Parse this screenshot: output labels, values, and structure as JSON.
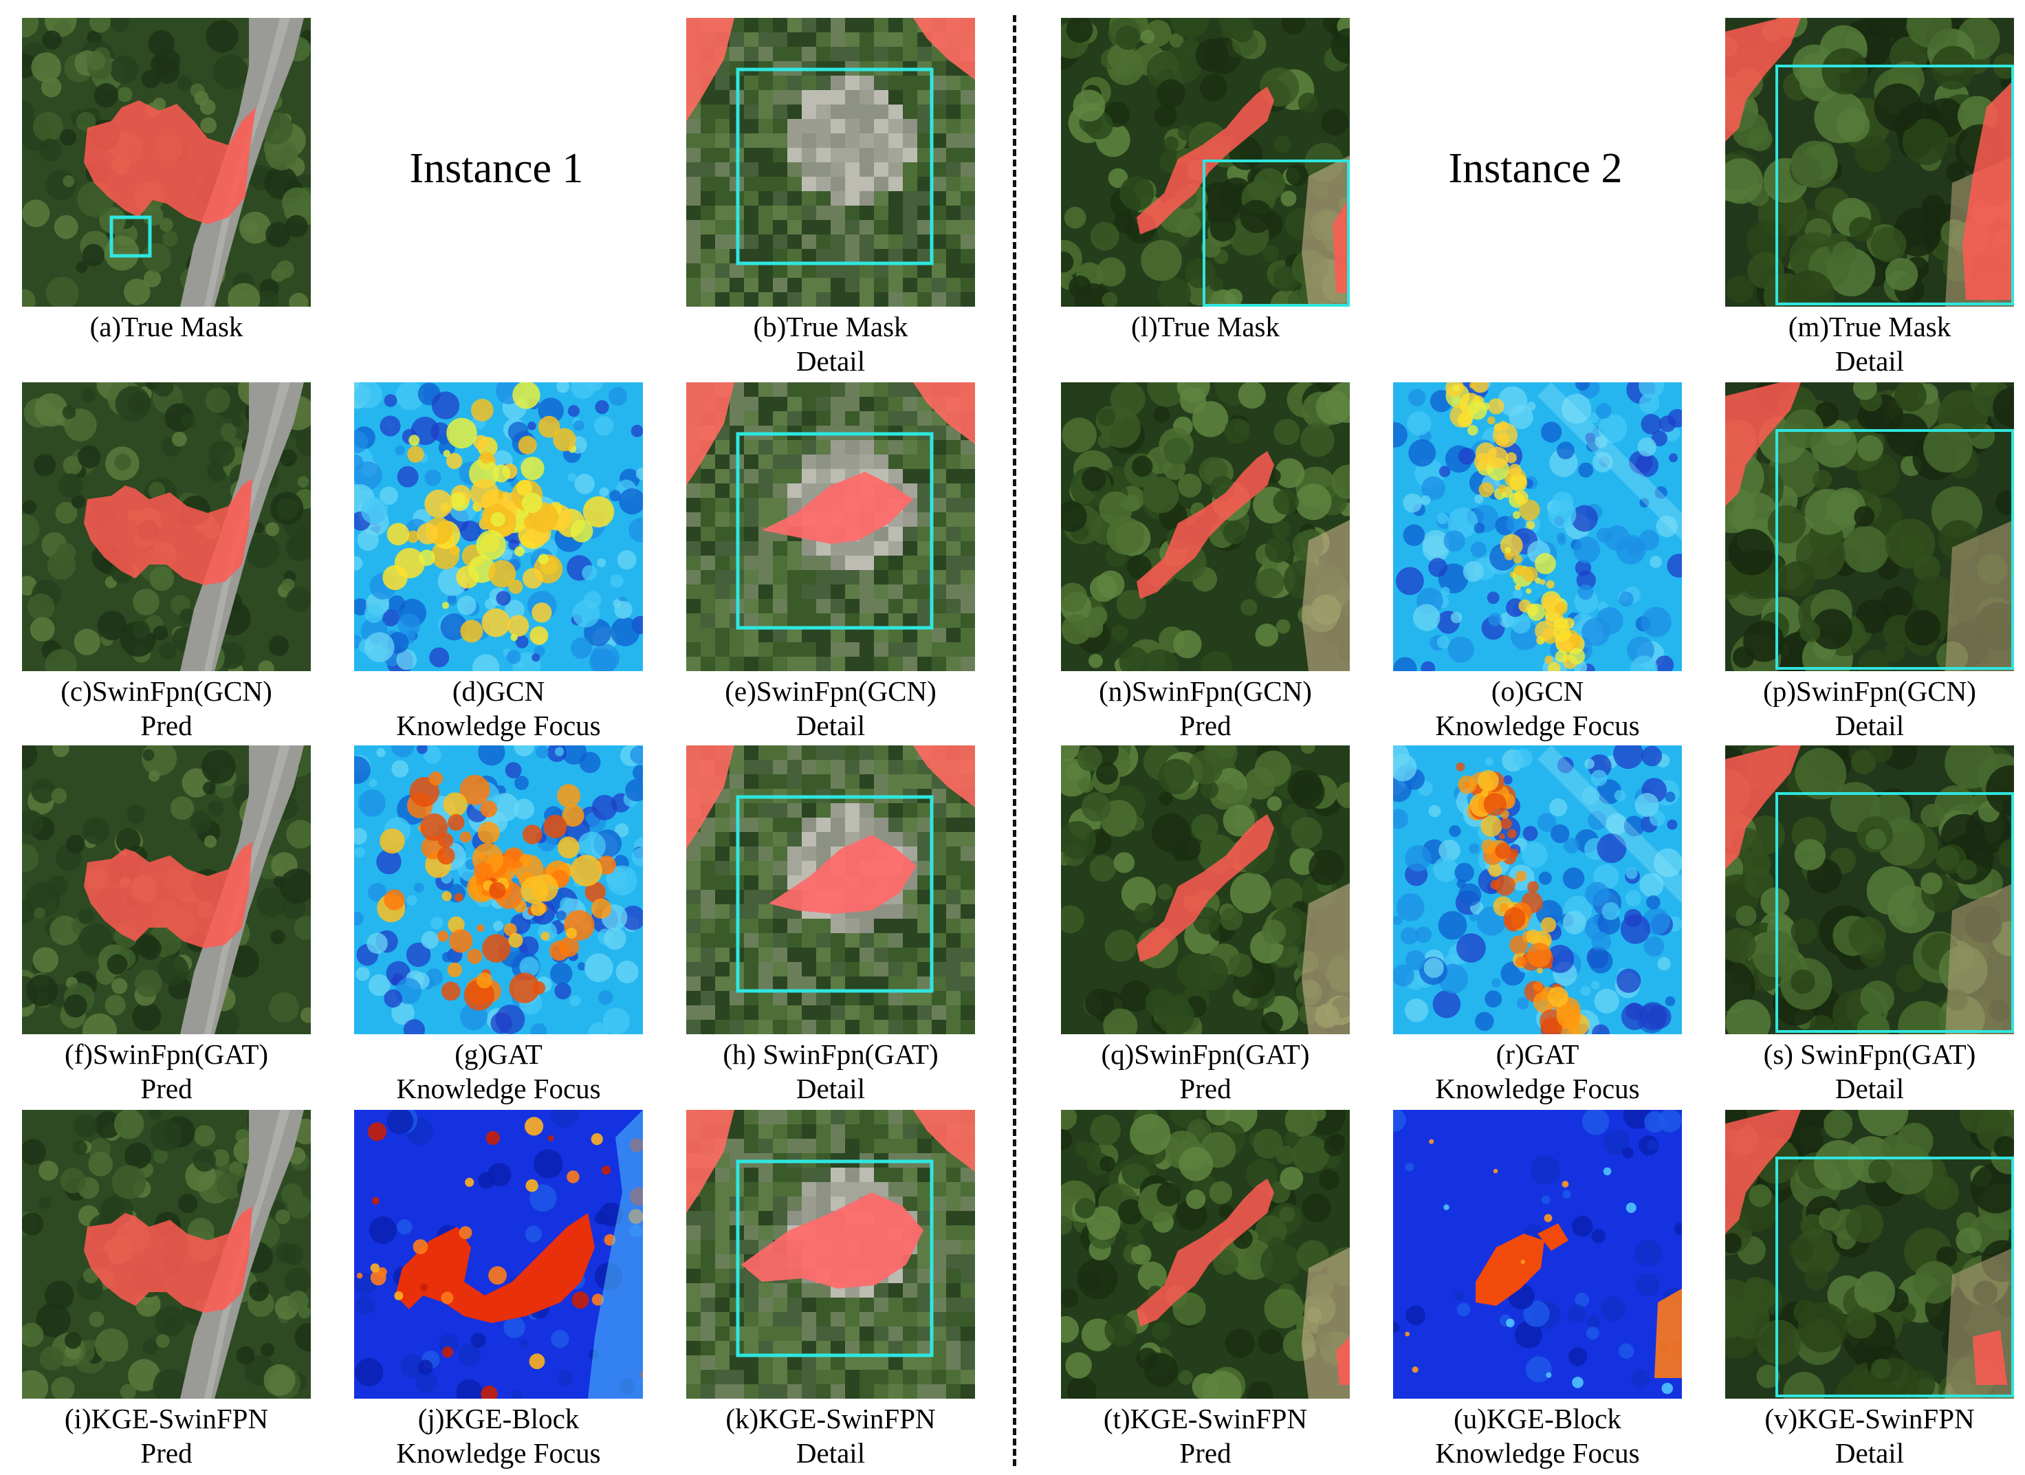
{
  "instances": [
    {
      "title": "Instance 1"
    },
    {
      "title": "Instance 2"
    }
  ],
  "panels": [
    {
      "id": "a",
      "kind": "overview-road",
      "caption": [
        "(a)True Mask"
      ]
    },
    {
      "id": "b",
      "kind": "detail-gray",
      "caption": [
        "(b)True Mask",
        "Detail"
      ]
    },
    {
      "id": "c",
      "kind": "overview-road",
      "caption": [
        "(c)SwinFpn(GCN)",
        "Pred"
      ]
    },
    {
      "id": "d",
      "kind": "heat-gcn",
      "caption": [
        "(d)GCN",
        "Knowledge Focus"
      ]
    },
    {
      "id": "e",
      "kind": "detail-gray",
      "caption": [
        "(e)SwinFpn(GCN)",
        "Detail"
      ]
    },
    {
      "id": "f",
      "kind": "overview-road",
      "caption": [
        "(f)SwinFpn(GAT)",
        "Pred"
      ]
    },
    {
      "id": "g",
      "kind": "heat-gat",
      "caption": [
        "(g)GAT",
        "Knowledge Focus"
      ]
    },
    {
      "id": "h",
      "kind": "detail-gray",
      "caption": [
        "(h) SwinFpn(GAT)",
        "Detail"
      ]
    },
    {
      "id": "i",
      "kind": "overview-road",
      "caption": [
        "(i)KGE-SwinFPN",
        "Pred"
      ]
    },
    {
      "id": "j",
      "kind": "heat-kge",
      "caption": [
        "(j)KGE-Block",
        "Knowledge Focus"
      ]
    },
    {
      "id": "k",
      "kind": "detail-gray",
      "caption": [
        "(k)KGE-SwinFPN",
        "Detail"
      ]
    },
    {
      "id": "l",
      "kind": "overview-forest",
      "caption": [
        "(l)True Mask"
      ]
    },
    {
      "id": "m",
      "kind": "detail-forest",
      "caption": [
        "(m)True Mask",
        "Detail"
      ]
    },
    {
      "id": "n",
      "kind": "overview-forest",
      "caption": [
        "(n)SwinFpn(GCN)",
        "Pred"
      ]
    },
    {
      "id": "o",
      "kind": "heat-gcn2",
      "caption": [
        "(o)GCN",
        "Knowledge Focus"
      ]
    },
    {
      "id": "p",
      "kind": "detail-forest",
      "caption": [
        "(p)SwinFpn(GCN)",
        "Detail"
      ]
    },
    {
      "id": "q",
      "kind": "overview-forest",
      "caption": [
        "(q)SwinFpn(GAT)",
        "Pred"
      ]
    },
    {
      "id": "r",
      "kind": "heat-gat2",
      "caption": [
        "(r)GAT",
        "Knowledge Focus"
      ]
    },
    {
      "id": "s",
      "kind": "detail-forest",
      "caption": [
        "(s) SwinFpn(GAT)",
        "Detail"
      ]
    },
    {
      "id": "t",
      "kind": "overview-forest",
      "caption": [
        "(t)KGE-SwinFPN",
        "Pred"
      ]
    },
    {
      "id": "u",
      "kind": "heat-kge2",
      "caption": [
        "(u)KGE-Block",
        "Knowledge Focus"
      ]
    },
    {
      "id": "v",
      "kind": "detail-forest",
      "caption": [
        "(v)KGE-SwinFPN",
        "Detail"
      ]
    }
  ]
}
